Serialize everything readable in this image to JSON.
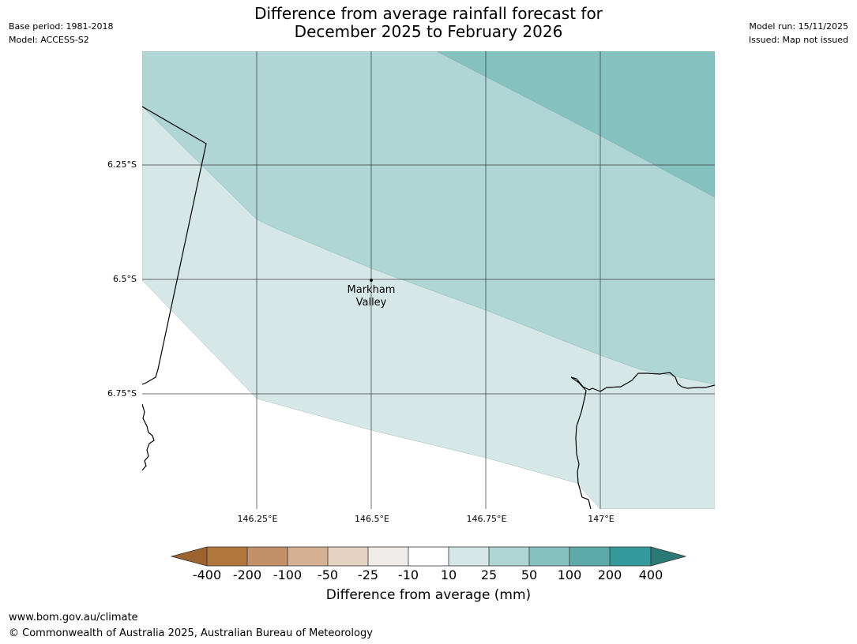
{
  "title": {
    "line1": "Difference from average rainfall forecast for",
    "line2": "December 2025 to February 2026"
  },
  "meta_left": {
    "base_period": "Base period: 1981-2018",
    "model": "Model: ACCESS-S2"
  },
  "meta_right": {
    "model_run": "Model run: 15/11/2025",
    "issued": "Issued: Map not issued"
  },
  "map": {
    "latitudes": [
      "6.25°S",
      "6.5°S",
      "6.75°S"
    ],
    "longitudes": [
      "146.25°E",
      "146.5°E",
      "146.75°E",
      "147°E"
    ],
    "place": {
      "name_line1": "Markham",
      "name_line2": "Valley"
    }
  },
  "legend": {
    "title": "Difference from average (mm)",
    "ticks": [
      "-400",
      "-200",
      "-100",
      "-50",
      "-25",
      "-10",
      "10",
      "25",
      "50",
      "100",
      "200",
      "400"
    ],
    "colors": [
      "#9c6330",
      "#b0763b",
      "#c29169",
      "#d5b092",
      "#e5d2c0",
      "#eeebe8",
      "#ffffff",
      "#d5e8e7",
      "#afd5d5",
      "#84c1bf",
      "#5cabaa",
      "#33999a",
      "#2b7a78"
    ],
    "zone_colors": {
      "light": "#d5e8e7",
      "mid": "#afd5d5",
      "dark": "#84c1bf"
    }
  },
  "footer": {
    "url": "www.bom.gov.au/climate",
    "copyright": "© Commonwealth of Australia 2025, Australian Bureau of Meteorology"
  }
}
